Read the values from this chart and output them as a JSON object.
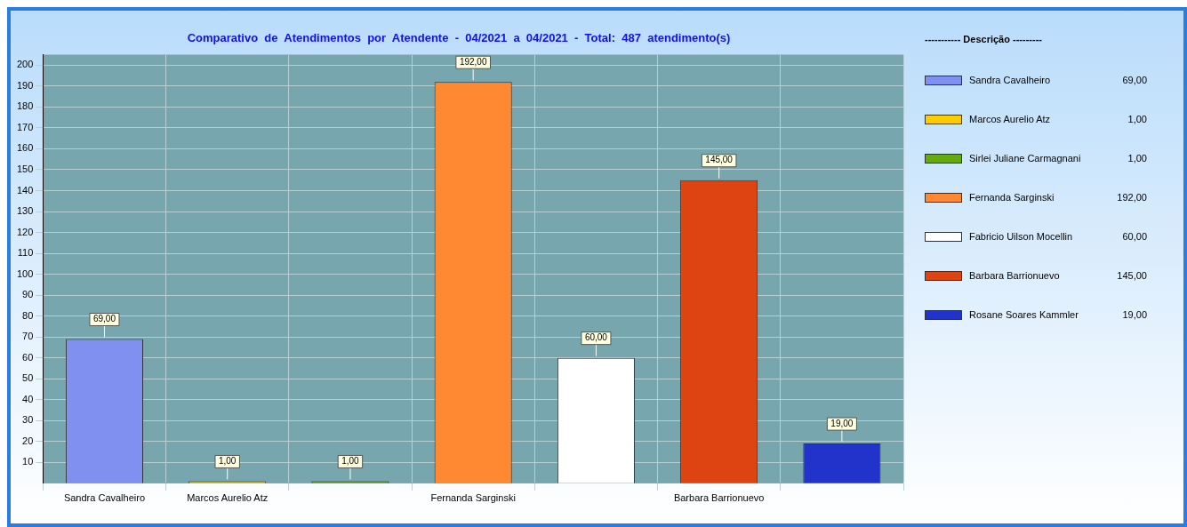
{
  "chart_data": {
    "type": "bar",
    "title": "Comparativo  de  Atendimentos  por  Atendente  -  04/2021  a  04/2021  -  Total:  487  atendimento(s)",
    "legend_title": "----------- Descrição ---------",
    "categories": [
      "Sandra Cavalheiro",
      "Marcos Aurelio Atz",
      null,
      "Fernanda Sarginski",
      null,
      "Barbara Barrionuevo",
      null
    ],
    "stacked": true,
    "ylim": [
      0,
      205
    ],
    "yticks": [
      10,
      20,
      30,
      40,
      50,
      60,
      70,
      80,
      90,
      100,
      110,
      120,
      130,
      140,
      150,
      160,
      170,
      180,
      190,
      200
    ],
    "grid": true,
    "legend": "right",
    "series": [
      {
        "name": "Sandra Cavalheiro",
        "color": "#8090f0",
        "values": [
          69,
          null,
          null,
          null,
          null,
          null,
          null
        ],
        "value_labels": [
          "69,00",
          null,
          null,
          null,
          null,
          null,
          null
        ]
      },
      {
        "name": "Marcos Aurelio Atz",
        "color": "#ffcc00",
        "values": [
          null,
          1,
          null,
          null,
          null,
          null,
          null
        ],
        "value_labels": [
          null,
          "1,00",
          null,
          null,
          null,
          null,
          null
        ]
      },
      {
        "name": "Sirlei Juliane Carmagnani",
        "color": "#66aa11",
        "values": [
          null,
          null,
          1,
          null,
          null,
          null,
          null
        ],
        "value_labels": [
          null,
          null,
          "1,00",
          null,
          null,
          null,
          null
        ]
      },
      {
        "name": "Fernanda Sarginski",
        "color": "#ff8833",
        "values": [
          null,
          null,
          null,
          192,
          null,
          null,
          null
        ],
        "value_labels": [
          null,
          null,
          null,
          "192,00",
          null,
          null,
          null
        ]
      },
      {
        "name": "Fabricio Uilson Mocellin",
        "color": "#ffffff",
        "values": [
          null,
          null,
          null,
          null,
          60,
          null,
          null
        ],
        "value_labels": [
          null,
          null,
          null,
          null,
          "60,00",
          null,
          null
        ]
      },
      {
        "name": "Barbara Barrionuevo",
        "color": "#dd4411",
        "values": [
          null,
          null,
          null,
          null,
          null,
          145,
          null
        ],
        "value_labels": [
          null,
          null,
          null,
          null,
          null,
          "145,00",
          null
        ]
      },
      {
        "name": "Rosane Soares Kammler",
        "color": "#2233cc",
        "values": [
          null,
          null,
          null,
          null,
          null,
          null,
          19
        ],
        "value_labels": [
          null,
          null,
          null,
          null,
          null,
          null,
          "19,00"
        ]
      }
    ]
  }
}
